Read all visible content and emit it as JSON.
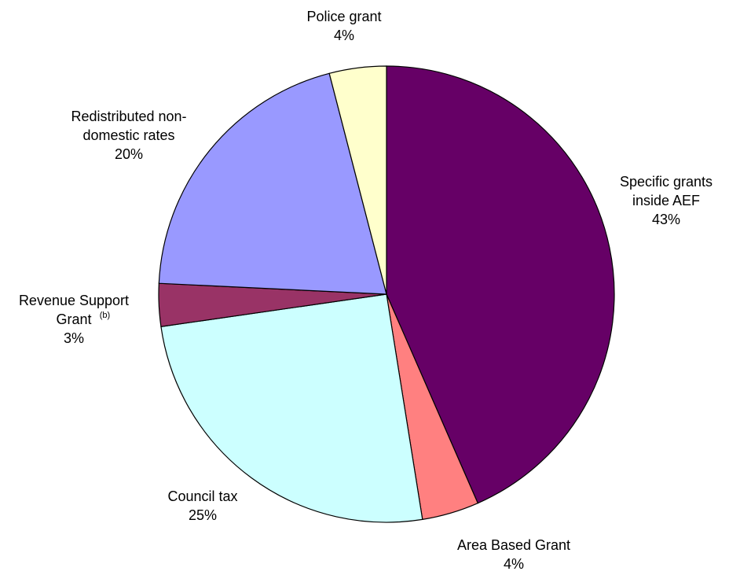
{
  "chart_data": {
    "type": "pie",
    "start_angle_deg": 0,
    "direction": "clockwise",
    "slices": [
      {
        "label_lines": [
          "Specific grants",
          "inside AEF"
        ],
        "superscript": "",
        "value": 43,
        "pct_label": "43%",
        "color": "#660066"
      },
      {
        "label_lines": [
          "Area Based Grant"
        ],
        "superscript": "",
        "value": 4,
        "pct_label": "4%",
        "color": "#FF8080"
      },
      {
        "label_lines": [
          "Council tax"
        ],
        "superscript": "",
        "value": 25,
        "pct_label": "25%",
        "color": "#CCFFFF"
      },
      {
        "label_lines": [
          "Revenue Support",
          "Grant"
        ],
        "superscript": "(b)",
        "value": 3,
        "pct_label": "3%",
        "color": "#993366"
      },
      {
        "label_lines": [
          "Redistributed non-",
          "domestic rates"
        ],
        "superscript": "",
        "value": 20,
        "pct_label": "20%",
        "color": "#9999FF"
      },
      {
        "label_lines": [
          "Police grant"
        ],
        "superscript": "",
        "value": 4,
        "pct_label": "4%",
        "color": "#FFFFCC"
      }
    ]
  }
}
